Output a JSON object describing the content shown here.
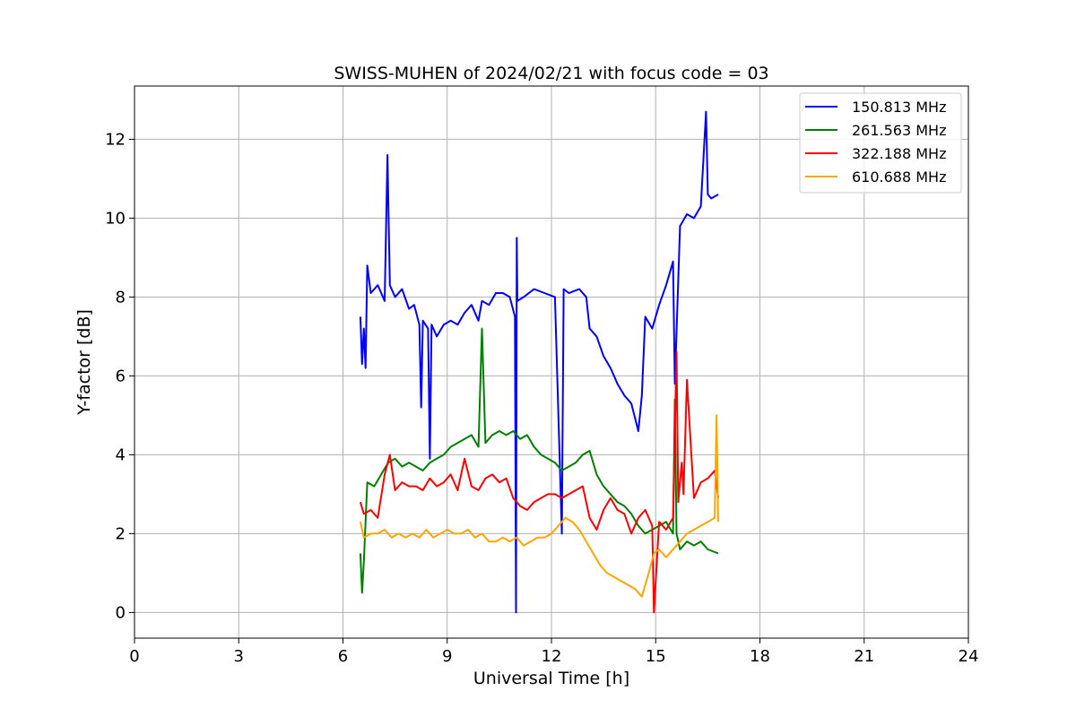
{
  "chart_data": {
    "type": "line",
    "title": "SWISS-MUHEN of 2024/02/21 with focus code = 03",
    "xlabel": "Universal Time [h]",
    "ylabel": "Y-factor [dB]",
    "xlim": [
      0,
      24
    ],
    "ylim": [
      -0.65,
      13.35
    ],
    "xticks": [
      0,
      3,
      6,
      9,
      12,
      15,
      18,
      21,
      24
    ],
    "yticks": [
      0,
      2,
      4,
      6,
      8,
      10,
      12
    ],
    "grid": true,
    "legend_position": "top-right",
    "series": [
      {
        "name": "150.813 MHz",
        "color": "#0000ff",
        "x": [
          6.5,
          6.55,
          6.6,
          6.65,
          6.7,
          6.8,
          7.0,
          7.2,
          7.28,
          7.35,
          7.5,
          7.7,
          7.9,
          8.05,
          8.2,
          8.25,
          8.3,
          8.45,
          8.5,
          8.55,
          8.7,
          8.9,
          9.1,
          9.3,
          9.5,
          9.7,
          9.9,
          10.0,
          10.2,
          10.4,
          10.6,
          10.8,
          10.95,
          10.98,
          11.0,
          11.02,
          11.2,
          11.5,
          11.8,
          12.1,
          12.3,
          12.35,
          12.5,
          12.8,
          13.0,
          13.1,
          13.3,
          13.5,
          13.7,
          13.9,
          14.1,
          14.3,
          14.5,
          14.6,
          14.7,
          14.9,
          15.1,
          15.3,
          15.5,
          15.55,
          15.7,
          15.9,
          16.1,
          16.3,
          16.45,
          16.5,
          16.6,
          16.8
        ],
        "y": [
          7.5,
          6.3,
          7.2,
          6.2,
          8.8,
          8.1,
          8.3,
          7.9,
          11.6,
          8.3,
          8.0,
          8.2,
          7.7,
          7.8,
          7.3,
          5.2,
          7.4,
          7.2,
          3.9,
          7.3,
          7.0,
          7.3,
          7.4,
          7.3,
          7.6,
          7.8,
          7.4,
          7.9,
          7.8,
          8.1,
          8.1,
          8.0,
          7.5,
          0.0,
          9.5,
          7.9,
          8.0,
          8.2,
          8.1,
          8.0,
          2.0,
          8.2,
          8.1,
          8.2,
          8.0,
          7.2,
          7.0,
          6.5,
          6.2,
          5.8,
          5.5,
          5.3,
          4.6,
          5.5,
          7.5,
          7.2,
          7.8,
          8.3,
          8.9,
          5.8,
          9.8,
          10.1,
          10.0,
          10.3,
          12.7,
          10.6,
          10.5,
          10.6
        ]
      },
      {
        "name": "261.563 MHz",
        "color": "#008000",
        "x": [
          6.5,
          6.55,
          6.6,
          6.7,
          6.9,
          7.1,
          7.3,
          7.5,
          7.7,
          7.9,
          8.1,
          8.3,
          8.5,
          8.7,
          8.9,
          9.1,
          9.3,
          9.5,
          9.7,
          9.9,
          10.0,
          10.1,
          10.3,
          10.5,
          10.7,
          10.9,
          11.1,
          11.3,
          11.5,
          11.7,
          11.9,
          12.1,
          12.3,
          12.5,
          12.7,
          12.9,
          13.1,
          13.3,
          13.5,
          13.7,
          13.9,
          14.1,
          14.3,
          14.5,
          14.7,
          14.9,
          15.1,
          15.3,
          15.5,
          15.55,
          15.6,
          15.7,
          15.9,
          16.1,
          16.3,
          16.5,
          16.8
        ],
        "y": [
          1.5,
          0.5,
          1.3,
          3.3,
          3.2,
          3.5,
          3.8,
          3.9,
          3.7,
          3.8,
          3.7,
          3.6,
          3.8,
          3.9,
          4.0,
          4.2,
          4.3,
          4.4,
          4.5,
          4.2,
          7.2,
          4.3,
          4.5,
          4.6,
          4.5,
          4.6,
          4.4,
          4.5,
          4.2,
          4.0,
          3.9,
          3.8,
          3.6,
          3.7,
          3.8,
          4.0,
          4.1,
          3.5,
          3.2,
          3.0,
          2.8,
          2.7,
          2.5,
          2.2,
          2.0,
          2.1,
          2.2,
          2.3,
          2.0,
          5.4,
          2.0,
          1.6,
          1.8,
          1.7,
          1.8,
          1.6,
          1.5
        ]
      },
      {
        "name": "322.188 MHz",
        "color": "#ff0000",
        "x": [
          6.5,
          6.6,
          6.8,
          7.0,
          7.2,
          7.35,
          7.5,
          7.7,
          7.9,
          8.1,
          8.3,
          8.5,
          8.7,
          8.9,
          9.1,
          9.3,
          9.5,
          9.7,
          9.9,
          10.1,
          10.3,
          10.5,
          10.7,
          10.9,
          11.1,
          11.3,
          11.5,
          11.7,
          11.9,
          12.1,
          12.3,
          12.5,
          12.7,
          12.9,
          13.1,
          13.3,
          13.5,
          13.7,
          13.9,
          14.1,
          14.3,
          14.5,
          14.7,
          14.9,
          14.95,
          15.1,
          15.3,
          15.5,
          15.6,
          15.65,
          15.75,
          15.8,
          15.9,
          16.1,
          16.3,
          16.5,
          16.7,
          16.8
        ],
        "y": [
          2.8,
          2.5,
          2.6,
          2.4,
          3.5,
          4.0,
          3.1,
          3.3,
          3.2,
          3.2,
          3.1,
          3.4,
          3.2,
          3.3,
          3.5,
          3.1,
          3.9,
          3.2,
          3.1,
          3.4,
          3.5,
          3.3,
          3.4,
          2.9,
          2.7,
          2.6,
          2.8,
          2.9,
          3.0,
          3.0,
          2.9,
          3.0,
          3.1,
          3.2,
          2.4,
          2.1,
          2.6,
          2.9,
          2.6,
          2.5,
          2.0,
          2.4,
          2.6,
          2.2,
          0.0,
          2.3,
          2.1,
          2.4,
          6.6,
          2.8,
          3.8,
          3.0,
          5.9,
          2.9,
          3.3,
          3.4,
          3.6,
          2.9
        ]
      },
      {
        "name": "610.688 MHz",
        "color": "#ffa500",
        "x": [
          6.5,
          6.6,
          6.8,
          7.0,
          7.2,
          7.4,
          7.6,
          7.8,
          8.0,
          8.2,
          8.4,
          8.6,
          8.8,
          9.0,
          9.2,
          9.4,
          9.6,
          9.8,
          10.0,
          10.2,
          10.4,
          10.6,
          10.8,
          11.0,
          11.2,
          11.4,
          11.6,
          11.8,
          12.0,
          12.2,
          12.4,
          12.6,
          12.8,
          13.0,
          13.2,
          13.4,
          13.6,
          13.8,
          14.0,
          14.2,
          14.4,
          14.6,
          14.8,
          14.95,
          15.1,
          15.3,
          15.5,
          15.7,
          15.9,
          16.1,
          16.3,
          16.5,
          16.7,
          16.75,
          16.8
        ],
        "y": [
          2.3,
          1.9,
          2.0,
          2.0,
          2.1,
          1.9,
          2.0,
          1.9,
          2.0,
          1.9,
          2.1,
          1.9,
          2.0,
          2.1,
          2.0,
          2.0,
          2.1,
          1.9,
          2.0,
          1.8,
          1.8,
          1.9,
          1.8,
          1.9,
          1.7,
          1.8,
          1.9,
          1.9,
          2.0,
          2.2,
          2.4,
          2.3,
          2.1,
          1.8,
          1.5,
          1.2,
          1.0,
          0.9,
          0.8,
          0.7,
          0.6,
          0.4,
          1.0,
          1.5,
          1.6,
          1.4,
          1.6,
          1.8,
          2.0,
          2.1,
          2.2,
          2.3,
          2.4,
          5.0,
          2.3
        ]
      }
    ]
  }
}
